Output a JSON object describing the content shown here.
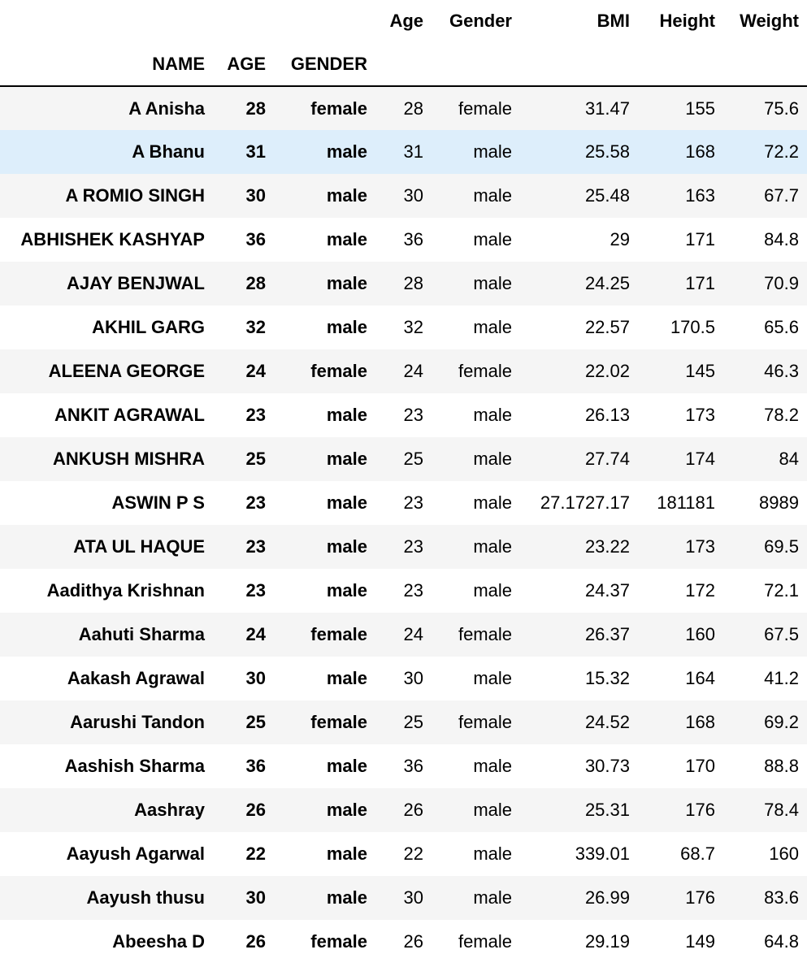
{
  "columns": {
    "age": "Age",
    "gender": "Gender",
    "bmi": "BMI",
    "height": "Height",
    "weight": "Weight"
  },
  "index_names": {
    "name": "NAME",
    "age": "AGE",
    "gender": "GENDER"
  },
  "rows": [
    {
      "name": "A Anisha",
      "AGE": "28",
      "GENDER": "female",
      "age": "28",
      "gender": "female",
      "bmi": "31.47",
      "height": "155",
      "weight": "75.6"
    },
    {
      "name": "A Bhanu",
      "AGE": "31",
      "GENDER": "male",
      "age": "31",
      "gender": "male",
      "bmi": "25.58",
      "height": "168",
      "weight": "72.2"
    },
    {
      "name": "A ROMIO SINGH",
      "AGE": "30",
      "GENDER": "male",
      "age": "30",
      "gender": "male",
      "bmi": "25.48",
      "height": "163",
      "weight": "67.7"
    },
    {
      "name": "ABHISHEK KASHYAP",
      "AGE": "36",
      "GENDER": "male",
      "age": "36",
      "gender": "male",
      "bmi": "29",
      "height": "171",
      "weight": "84.8"
    },
    {
      "name": "AJAY BENJWAL",
      "AGE": "28",
      "GENDER": "male",
      "age": "28",
      "gender": "male",
      "bmi": "24.25",
      "height": "171",
      "weight": "70.9"
    },
    {
      "name": "AKHIL GARG",
      "AGE": "32",
      "GENDER": "male",
      "age": "32",
      "gender": "male",
      "bmi": "22.57",
      "height": "170.5",
      "weight": "65.6"
    },
    {
      "name": "ALEENA GEORGE",
      "AGE": "24",
      "GENDER": "female",
      "age": "24",
      "gender": "female",
      "bmi": "22.02",
      "height": "145",
      "weight": "46.3"
    },
    {
      "name": "ANKIT AGRAWAL",
      "AGE": "23",
      "GENDER": "male",
      "age": "23",
      "gender": "male",
      "bmi": "26.13",
      "height": "173",
      "weight": "78.2"
    },
    {
      "name": "ANKUSH MISHRA",
      "AGE": "25",
      "GENDER": "male",
      "age": "25",
      "gender": "male",
      "bmi": "27.74",
      "height": "174",
      "weight": "84"
    },
    {
      "name": "ASWIN P S",
      "AGE": "23",
      "GENDER": "male",
      "age": "23",
      "gender": "male",
      "bmi": "27.1727.17",
      "height": "181181",
      "weight": "8989"
    },
    {
      "name": "ATA UL HAQUE",
      "AGE": "23",
      "GENDER": "male",
      "age": "23",
      "gender": "male",
      "bmi": "23.22",
      "height": "173",
      "weight": "69.5"
    },
    {
      "name": "Aadithya Krishnan",
      "AGE": "23",
      "GENDER": "male",
      "age": "23",
      "gender": "male",
      "bmi": "24.37",
      "height": "172",
      "weight": "72.1"
    },
    {
      "name": "Aahuti Sharma",
      "AGE": "24",
      "GENDER": "female",
      "age": "24",
      "gender": "female",
      "bmi": "26.37",
      "height": "160",
      "weight": "67.5"
    },
    {
      "name": "Aakash Agrawal",
      "AGE": "30",
      "GENDER": "male",
      "age": "30",
      "gender": "male",
      "bmi": "15.32",
      "height": "164",
      "weight": "41.2"
    },
    {
      "name": "Aarushi Tandon",
      "AGE": "25",
      "GENDER": "female",
      "age": "25",
      "gender": "female",
      "bmi": "24.52",
      "height": "168",
      "weight": "69.2"
    },
    {
      "name": "Aashish Sharma",
      "AGE": "36",
      "GENDER": "male",
      "age": "36",
      "gender": "male",
      "bmi": "30.73",
      "height": "170",
      "weight": "88.8"
    },
    {
      "name": "Aashray",
      "AGE": "26",
      "GENDER": "male",
      "age": "26",
      "gender": "male",
      "bmi": "25.31",
      "height": "176",
      "weight": "78.4"
    },
    {
      "name": "Aayush Agarwal",
      "AGE": "22",
      "GENDER": "male",
      "age": "22",
      "gender": "male",
      "bmi": "339.01",
      "height": "68.7",
      "weight": "160"
    },
    {
      "name": "Aayush thusu",
      "AGE": "30",
      "GENDER": "male",
      "age": "30",
      "gender": "male",
      "bmi": "26.99",
      "height": "176",
      "weight": "83.6"
    },
    {
      "name": "Abeesha D",
      "AGE": "26",
      "GENDER": "female",
      "age": "26",
      "gender": "female",
      "bmi": "29.19",
      "height": "149",
      "weight": "64.8"
    }
  ],
  "colors": {
    "row_striped": "#f5f5f5",
    "row_plain": "#ffffff",
    "row_hover": "#ddeefb",
    "header_rule": "#000000"
  },
  "hovered_row": 1
}
